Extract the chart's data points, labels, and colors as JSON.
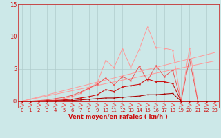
{
  "x": [
    0,
    1,
    2,
    3,
    4,
    5,
    6,
    7,
    8,
    9,
    10,
    11,
    12,
    13,
    14,
    15,
    16,
    17,
    18,
    19,
    20,
    21,
    22,
    23
  ],
  "line_pink_jagged": [
    0,
    0,
    0,
    0.1,
    0.2,
    0.4,
    0.7,
    1.2,
    2.0,
    2.8,
    6.3,
    5.2,
    8.1,
    5.2,
    8.0,
    11.5,
    8.3,
    8.2,
    7.9,
    0.0,
    8.2,
    0,
    0,
    0
  ],
  "line_medium_jagged": [
    0,
    0,
    0.1,
    0.2,
    0.4,
    0.6,
    0.9,
    1.4,
    2.0,
    2.6,
    3.6,
    2.5,
    3.8,
    3.2,
    5.4,
    3.2,
    5.5,
    3.8,
    4.8,
    0.0,
    6.5,
    0,
    0,
    0
  ],
  "line_dark_jagged": [
    0,
    0,
    0,
    0.1,
    0.1,
    0.2,
    0.3,
    0.5,
    0.7,
    1.0,
    1.8,
    1.5,
    2.2,
    2.4,
    2.6,
    3.4,
    3.0,
    3.0,
    2.7,
    0,
    0,
    0,
    0,
    0
  ],
  "line_darkest": [
    0,
    0,
    0,
    0,
    0,
    0.1,
    0.1,
    0.2,
    0.3,
    0.4,
    0.5,
    0.5,
    0.6,
    0.7,
    0.8,
    1.0,
    1.0,
    1.1,
    1.2,
    0,
    0,
    0,
    0,
    0
  ],
  "diag1": [
    0,
    0.33,
    0.65,
    0.98,
    1.3,
    1.63,
    1.96,
    2.28,
    2.61,
    2.94,
    3.26,
    3.59,
    3.92,
    4.24,
    4.57,
    4.9,
    5.22,
    5.55,
    5.88,
    6.2,
    6.53,
    6.86,
    7.18,
    7.51
  ],
  "diag2": [
    0,
    0.27,
    0.54,
    0.81,
    1.08,
    1.35,
    1.62,
    1.89,
    2.16,
    2.43,
    2.7,
    2.97,
    3.24,
    3.51,
    3.78,
    4.05,
    4.32,
    4.59,
    4.86,
    5.13,
    5.4,
    5.67,
    5.94,
    6.21
  ],
  "arrows_x": [
    0,
    1,
    2,
    3,
    4,
    5,
    6,
    7,
    8,
    9,
    10,
    11,
    12,
    13,
    14,
    15,
    16,
    17,
    18,
    19,
    20,
    21,
    22,
    23
  ],
  "bg_color": "#cce8e8",
  "grid_color": "#b0cccc",
  "color_pink": "#ff9999",
  "color_medium": "#ee5555",
  "color_dark": "#cc1111",
  "color_darkest": "#aa0000",
  "xlabel": "Vent moyen/en rafales ( kn/h )",
  "ylim_min": 0,
  "ylim_max": 15,
  "xlim_min": 0,
  "xlim_max": 23,
  "yticks": [
    0,
    5,
    10,
    15
  ],
  "xticks": [
    0,
    1,
    2,
    3,
    4,
    5,
    6,
    7,
    8,
    9,
    10,
    11,
    12,
    13,
    14,
    15,
    16,
    17,
    18,
    19,
    20,
    21,
    22,
    23
  ],
  "tick_fontsize": 5,
  "xlabel_fontsize": 6,
  "figsize": [
    3.2,
    2.0
  ],
  "dpi": 100
}
